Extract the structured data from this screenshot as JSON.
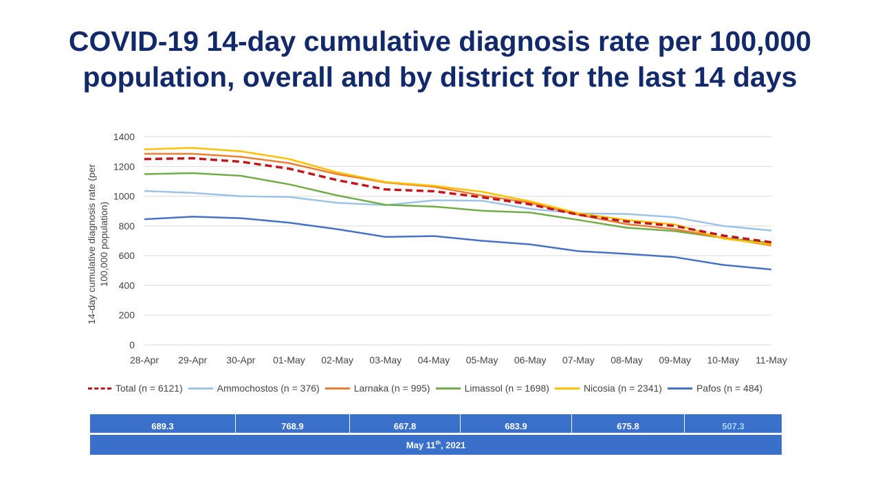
{
  "title_line1": "COVID-19 14-day cumulative diagnosis rate per 100,000",
  "title_line2": "population, overall and by district for the last 14 days",
  "chart_data": {
    "type": "line",
    "categories": [
      "28-Apr",
      "29-Apr",
      "30-Apr",
      "01-May",
      "02-May",
      "03-May",
      "04-May",
      "05-May",
      "06-May",
      "07-May",
      "08-May",
      "09-May",
      "10-May",
      "11-May"
    ],
    "ylabel": "14-day cumulative diagnosis rate (per 100,000 population)",
    "ylim": [
      0,
      1400
    ],
    "yticks": [
      0,
      200,
      400,
      600,
      800,
      1000,
      1200,
      1400
    ],
    "grid": true,
    "legend_position": "bottom",
    "series": [
      {
        "name": "Total (n = 6121)",
        "color": "#c0161c",
        "dashed": true,
        "values": [
          1250,
          1255,
          1232,
          1185,
          1108,
          1045,
          1033,
          993,
          945,
          875,
          830,
          800,
          735,
          690
        ]
      },
      {
        "name": "Ammochostos (n = 376)",
        "color": "#9dc3e6",
        "dashed": false,
        "values": [
          1035,
          1022,
          1000,
          995,
          955,
          940,
          972,
          970,
          915,
          885,
          880,
          858,
          800,
          769
        ]
      },
      {
        "name": "Larnaka (n = 995)",
        "color": "#ed7d31",
        "dashed": false,
        "values": [
          1285,
          1285,
          1265,
          1222,
          1148,
          1092,
          1063,
          1005,
          955,
          875,
          812,
          778,
          720,
          668
        ]
      },
      {
        "name": "Limassol (n = 1698)",
        "color": "#70ad47",
        "dashed": false,
        "values": [
          1148,
          1155,
          1137,
          1080,
          1005,
          942,
          930,
          902,
          890,
          840,
          788,
          765,
          720,
          684
        ]
      },
      {
        "name": "Nicosia (n = 2341)",
        "color": "#ffc000",
        "dashed": false,
        "values": [
          1315,
          1325,
          1302,
          1250,
          1160,
          1095,
          1070,
          1030,
          965,
          885,
          840,
          810,
          715,
          676
        ]
      },
      {
        "name": "Pafos (n = 484)",
        "color": "#4472c4",
        "dashed": false,
        "values": [
          845,
          862,
          852,
          822,
          778,
          726,
          732,
          700,
          676,
          630,
          612,
          590,
          538,
          507
        ]
      }
    ]
  },
  "summary": {
    "values": [
      "689.3",
      "768.9",
      "667.8",
      "683.9",
      "675.8",
      "507.3"
    ],
    "date_main": "May 11",
    "date_sup": "th",
    "date_tail": ", 2021"
  }
}
